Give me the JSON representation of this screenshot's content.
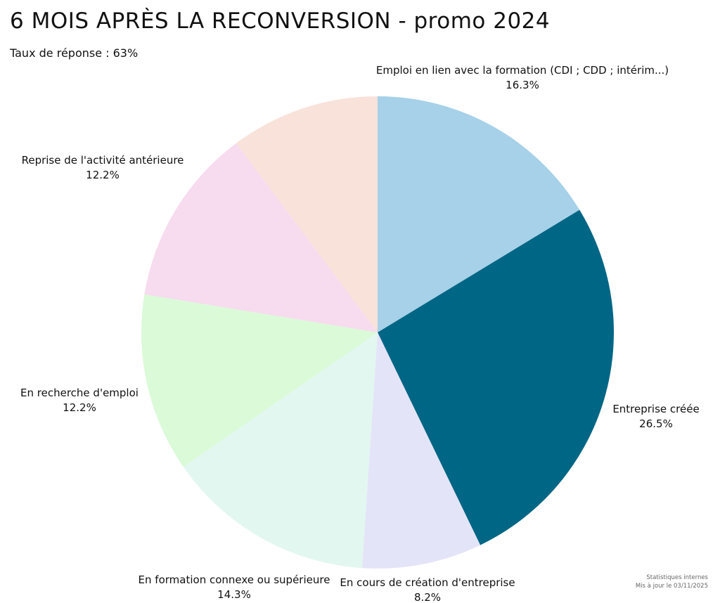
{
  "chart_data": {
    "type": "pie",
    "title": "6 MOIS APRÈS LA RECONVERSION - promo 2024",
    "subtitle": "Taux de réponse : 63%",
    "categories": [
      "Emploi en lien avec la formation (CDI ; CDD ; intérim...)",
      "Entreprise créée",
      "En cours de création d'entreprise",
      "En formation connexe ou supérieure",
      "En recherche d'emploi",
      "Reprise de l'activité antérieure",
      ""
    ],
    "values": [
      16.3,
      26.5,
      8.2,
      14.3,
      12.2,
      12.2,
      10.2
    ],
    "value_labels": [
      "16.3%",
      "26.5%",
      "8.2%",
      "14.3%",
      "12.2%",
      "12.2%",
      ""
    ],
    "colors": [
      "#a6d1e8",
      "#006685",
      "#e4e4f8",
      "#e2f7f0",
      "#dafad8",
      "#f7dbee",
      "#f8e2da"
    ],
    "start_angle": "12 o'clock",
    "direction": "clockwise"
  },
  "footer": {
    "line1": "Statistiques internes",
    "line2": "Mis à jour le 03/11/2025"
  }
}
